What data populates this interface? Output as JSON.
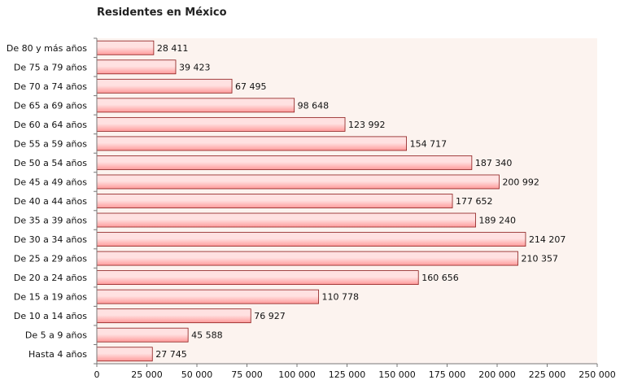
{
  "chart_data": {
    "type": "bar",
    "orientation": "horizontal",
    "title": "Residentes en México",
    "xlabel": "",
    "ylabel": "",
    "xlim": [
      0,
      250000
    ],
    "grid": false,
    "legend": "none",
    "categories": [
      "Hasta 4 años",
      "De 5 a 9 años",
      "De 10 a 14 años",
      "De 15 a 19 años",
      "De 20 a 24 años",
      "De 25 a 29 años",
      "De 30 a 34 años",
      "De 35 a 39 años",
      "De 40 a 44 años",
      "De 45 a 49 años",
      "De 50 a 54 años",
      "De 55 a 59 años",
      "De 60 a 64 años",
      "De 65 a 69 años",
      "De 70 a 74 años",
      "De 75 a 79 años",
      "De 80 y más años"
    ],
    "values": [
      27745,
      45588,
      76927,
      110778,
      160656,
      210357,
      214207,
      189240,
      177652,
      200992,
      187340,
      154717,
      123992,
      98648,
      67495,
      39423,
      28411
    ],
    "value_labels": [
      "27 745",
      "45 588",
      "76 927",
      "110 778",
      "160 656",
      "210 357",
      "214 207",
      "189 240",
      "177 652",
      "200 992",
      "187 340",
      "154 717",
      "123 992",
      "98 648",
      "67 495",
      "39 423",
      "28 411"
    ],
    "x_ticks": [
      0,
      25000,
      50000,
      75000,
      100000,
      125000,
      150000,
      175000,
      200000,
      225000,
      250000
    ],
    "x_tick_labels": [
      "0",
      "25 000",
      "50 000",
      "75 000",
      "100 000",
      "125 000",
      "150 000",
      "175 000",
      "200 000",
      "225 000",
      "250 000"
    ],
    "colors": {
      "bar_fill_light": "#ffe1e1",
      "bar_fill_dark": "#ff9a9a",
      "bar_stroke": "#8b1a1a",
      "plot_background": "#fcf3ef",
      "axis": "#777777"
    }
  }
}
